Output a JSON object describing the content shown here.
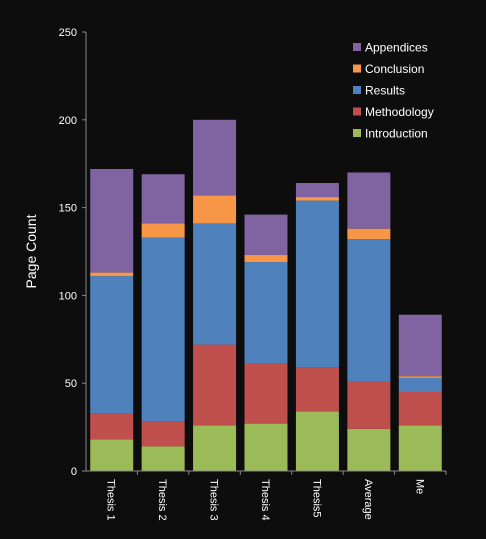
{
  "chart_data": {
    "type": "bar",
    "stacked": true,
    "title": "",
    "xlabel": "",
    "ylabel": "Page Count",
    "ylim": [
      0,
      250
    ],
    "yticks": [
      0,
      50,
      100,
      150,
      200,
      250
    ],
    "grid": false,
    "legend_position": "top-right",
    "categories": [
      "Thesis 1",
      "Thesis 2",
      "Thesis 3",
      "Thesis 4",
      "Thesis5",
      "Average",
      "Me"
    ],
    "series": [
      {
        "name": "Introduction",
        "color": "#9bbb59",
        "values": [
          18,
          14,
          26,
          27,
          34,
          24,
          26
        ]
      },
      {
        "name": "Methodology",
        "color": "#c0504d",
        "values": [
          15,
          14,
          46,
          34,
          25,
          27,
          19
        ]
      },
      {
        "name": "Results",
        "color": "#4f81bd",
        "values": [
          78,
          105,
          69,
          58,
          95,
          81,
          8
        ]
      },
      {
        "name": "Conclusion",
        "color": "#f79646",
        "values": [
          2,
          8,
          16,
          4,
          2,
          6,
          1
        ]
      },
      {
        "name": "Appendices",
        "color": "#8064a2",
        "values": [
          59,
          28,
          43,
          23,
          8,
          32,
          35
        ]
      }
    ],
    "legend_order": [
      "Appendices",
      "Conclusion",
      "Results",
      "Methodology",
      "Introduction"
    ]
  }
}
